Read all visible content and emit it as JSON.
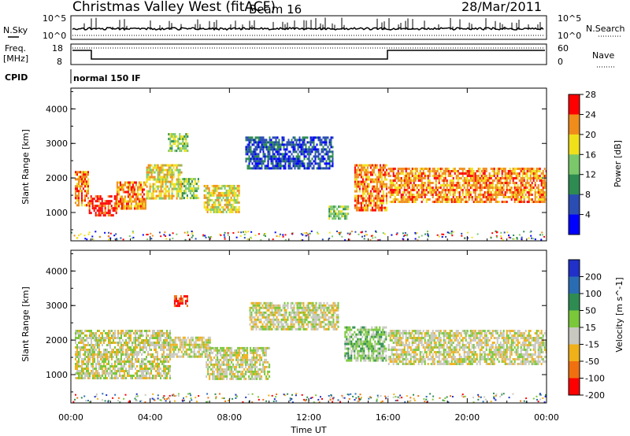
{
  "header": {
    "title": "Christmas Valley West (fitACF)",
    "beam": "Beam 16",
    "date": "28/Mar/2011"
  },
  "strip_nsky": {
    "left_label": "N.Sky",
    "right_label": "N.Search",
    "tick_top": "10^5",
    "tick_bottom": "10^0"
  },
  "strip_freq": {
    "left_label_1": "Freq.",
    "left_label_2": "[MHz]",
    "right_label": "Nave",
    "left_ticks": [
      "18",
      "8"
    ],
    "right_ticks": [
      "60",
      "0"
    ]
  },
  "cpid": {
    "label": "CPID",
    "mode_text": "normal 150 IF"
  },
  "chart_data": [
    {
      "type": "heatmap",
      "name": "power-panel",
      "ylabel": "Slant Range [km]",
      "ylim": [
        180,
        4600
      ],
      "yticks": [
        "1000",
        "2000",
        "3000",
        "4000"
      ],
      "xlim": [
        0,
        24
      ],
      "colorbar": {
        "label": "Power [dB]",
        "ticks": [
          "4",
          "8",
          "12",
          "16",
          "20",
          "24",
          "28"
        ],
        "colors": [
          "#0000ff",
          "#2a4db4",
          "#2e8c52",
          "#7ac86a",
          "#f0e01a",
          "#f08c1a",
          "#ff0000"
        ]
      },
      "echo_regions": [
        {
          "t0": 0.2,
          "t1": 0.9,
          "r0": 1200,
          "r1": 2200,
          "c": 5
        },
        {
          "t0": 0.9,
          "t1": 2.3,
          "r0": 900,
          "r1": 1500,
          "c": 6
        },
        {
          "t0": 2.3,
          "t1": 3.8,
          "r0": 1100,
          "r1": 1900,
          "c": 5
        },
        {
          "t0": 3.8,
          "t1": 5.6,
          "r0": 1400,
          "r1": 2400,
          "c": 4
        },
        {
          "t0": 5.6,
          "t1": 6.4,
          "r0": 1400,
          "r1": 2000,
          "c": 3
        },
        {
          "t0": 4.9,
          "t1": 5.9,
          "r0": 2800,
          "r1": 3300,
          "c": 3
        },
        {
          "t0": 6.7,
          "t1": 8.5,
          "r0": 1000,
          "r1": 1800,
          "c": 4
        },
        {
          "t0": 8.8,
          "t1": 13.2,
          "r0": 2300,
          "r1": 3200,
          "c": 1
        },
        {
          "t0": 13.0,
          "t1": 14.0,
          "r0": 800,
          "r1": 1200,
          "c": 3
        },
        {
          "t0": 14.3,
          "t1": 15.9,
          "r0": 1100,
          "r1": 2400,
          "c": 5
        },
        {
          "t0": 16.0,
          "t1": 24.0,
          "r0": 1300,
          "r1": 2300,
          "c": 5
        }
      ]
    },
    {
      "type": "heatmap",
      "name": "velocity-panel",
      "ylabel": "Slant Range [km]",
      "ylim": [
        180,
        4600
      ],
      "yticks": [
        "1000",
        "2000",
        "3000",
        "4000"
      ],
      "xlim": [
        0,
        24
      ],
      "xlabel": "Time UT",
      "xticks": [
        "00:00",
        "04:00",
        "08:00",
        "12:00",
        "16:00",
        "20:00",
        "00:00"
      ],
      "colorbar": {
        "label": "Velocity [m s^-1]",
        "ticks": [
          "200",
          "100",
          "50",
          "15",
          "-15",
          "-50",
          "-100",
          "-200"
        ],
        "colors": [
          "#2030c8",
          "#2a6cb4",
          "#2e8c52",
          "#7ac83a",
          "#c8c8c0",
          "#f0b01a",
          "#f07010",
          "#ff0000"
        ]
      },
      "echo_regions": [
        {
          "t0": 0.2,
          "t1": 5.0,
          "r0": 900,
          "r1": 2300,
          "c": 4
        },
        {
          "t0": 5.0,
          "t1": 7.0,
          "r0": 1500,
          "r1": 2100,
          "c": 4
        },
        {
          "t0": 5.2,
          "t1": 5.9,
          "r0": 3000,
          "r1": 3300,
          "c": 7
        },
        {
          "t0": 6.8,
          "t1": 10.0,
          "r0": 900,
          "r1": 1800,
          "c": 4
        },
        {
          "t0": 9.0,
          "t1": 13.5,
          "r0": 2300,
          "r1": 3100,
          "c": 4
        },
        {
          "t0": 13.8,
          "t1": 15.9,
          "r0": 1400,
          "r1": 2400,
          "c": 3
        },
        {
          "t0": 16.0,
          "t1": 24.0,
          "r0": 1300,
          "r1": 2300,
          "c": 4
        }
      ]
    }
  ]
}
